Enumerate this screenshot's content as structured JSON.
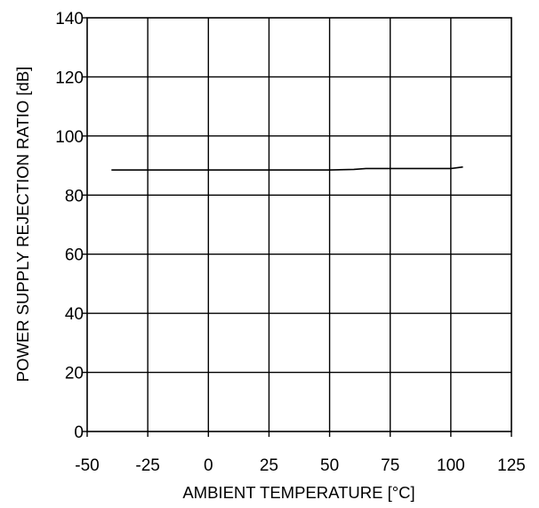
{
  "chart_data": {
    "type": "line",
    "title": "",
    "xlabel": "AMBIENT TEMPERATURE [°C]",
    "ylabel": "POWER SUPPLY REJECTION RATIO [dB]",
    "xlim": [
      -50,
      125
    ],
    "ylim": [
      0,
      140
    ],
    "x_ticks": [
      -50,
      -25,
      0,
      25,
      50,
      75,
      100,
      125
    ],
    "y_ticks": [
      0,
      20,
      40,
      60,
      80,
      100,
      120,
      140
    ],
    "x_tick_labels": [
      "-50",
      "-25",
      "0",
      "25",
      "50",
      "75",
      "100",
      "125"
    ],
    "y_tick_labels": [
      "0",
      "20",
      "40",
      "60",
      "80",
      "100",
      "120",
      "140"
    ],
    "grid": true,
    "line_color": "#000000",
    "series": [
      {
        "x": [
          -40,
          -25,
          0,
          25,
          50,
          60,
          65,
          75,
          100,
          105
        ],
        "y": [
          88.5,
          88.5,
          88.5,
          88.5,
          88.5,
          88.7,
          89.0,
          89.0,
          89.0,
          89.5
        ]
      }
    ]
  }
}
